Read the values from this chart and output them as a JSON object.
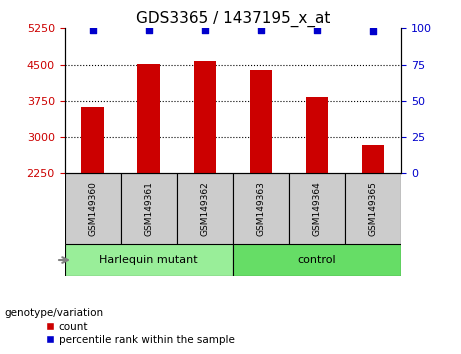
{
  "title": "GDS3365 / 1437195_x_at",
  "samples": [
    "GSM149360",
    "GSM149361",
    "GSM149362",
    "GSM149363",
    "GSM149364",
    "GSM149365"
  ],
  "counts": [
    3630,
    4510,
    4570,
    4390,
    3820,
    2840
  ],
  "percentile_ranks": [
    99,
    99,
    99,
    99,
    99,
    98
  ],
  "ylim_left": [
    2250,
    5250
  ],
  "yticks_left": [
    2250,
    3000,
    3750,
    4500,
    5250
  ],
  "ylim_right": [
    0,
    100
  ],
  "yticks_right": [
    0,
    25,
    50,
    75,
    100
  ],
  "bar_color": "#cc0000",
  "dot_color": "#0000cc",
  "bar_width": 0.4,
  "groups": [
    {
      "label": "Harlequin mutant",
      "samples": [
        0,
        1,
        2
      ],
      "color": "#99ee99"
    },
    {
      "label": "control",
      "samples": [
        3,
        4,
        5
      ],
      "color": "#66dd66"
    }
  ],
  "group_label": "genotype/variation",
  "legend_count_label": "count",
  "legend_percentile_label": "percentile rank within the sample",
  "tick_label_color_left": "#cc0000",
  "tick_label_color_right": "#0000cc",
  "sample_box_color": "#cccccc",
  "gridline_ticks": [
    3000,
    3750,
    4500
  ]
}
